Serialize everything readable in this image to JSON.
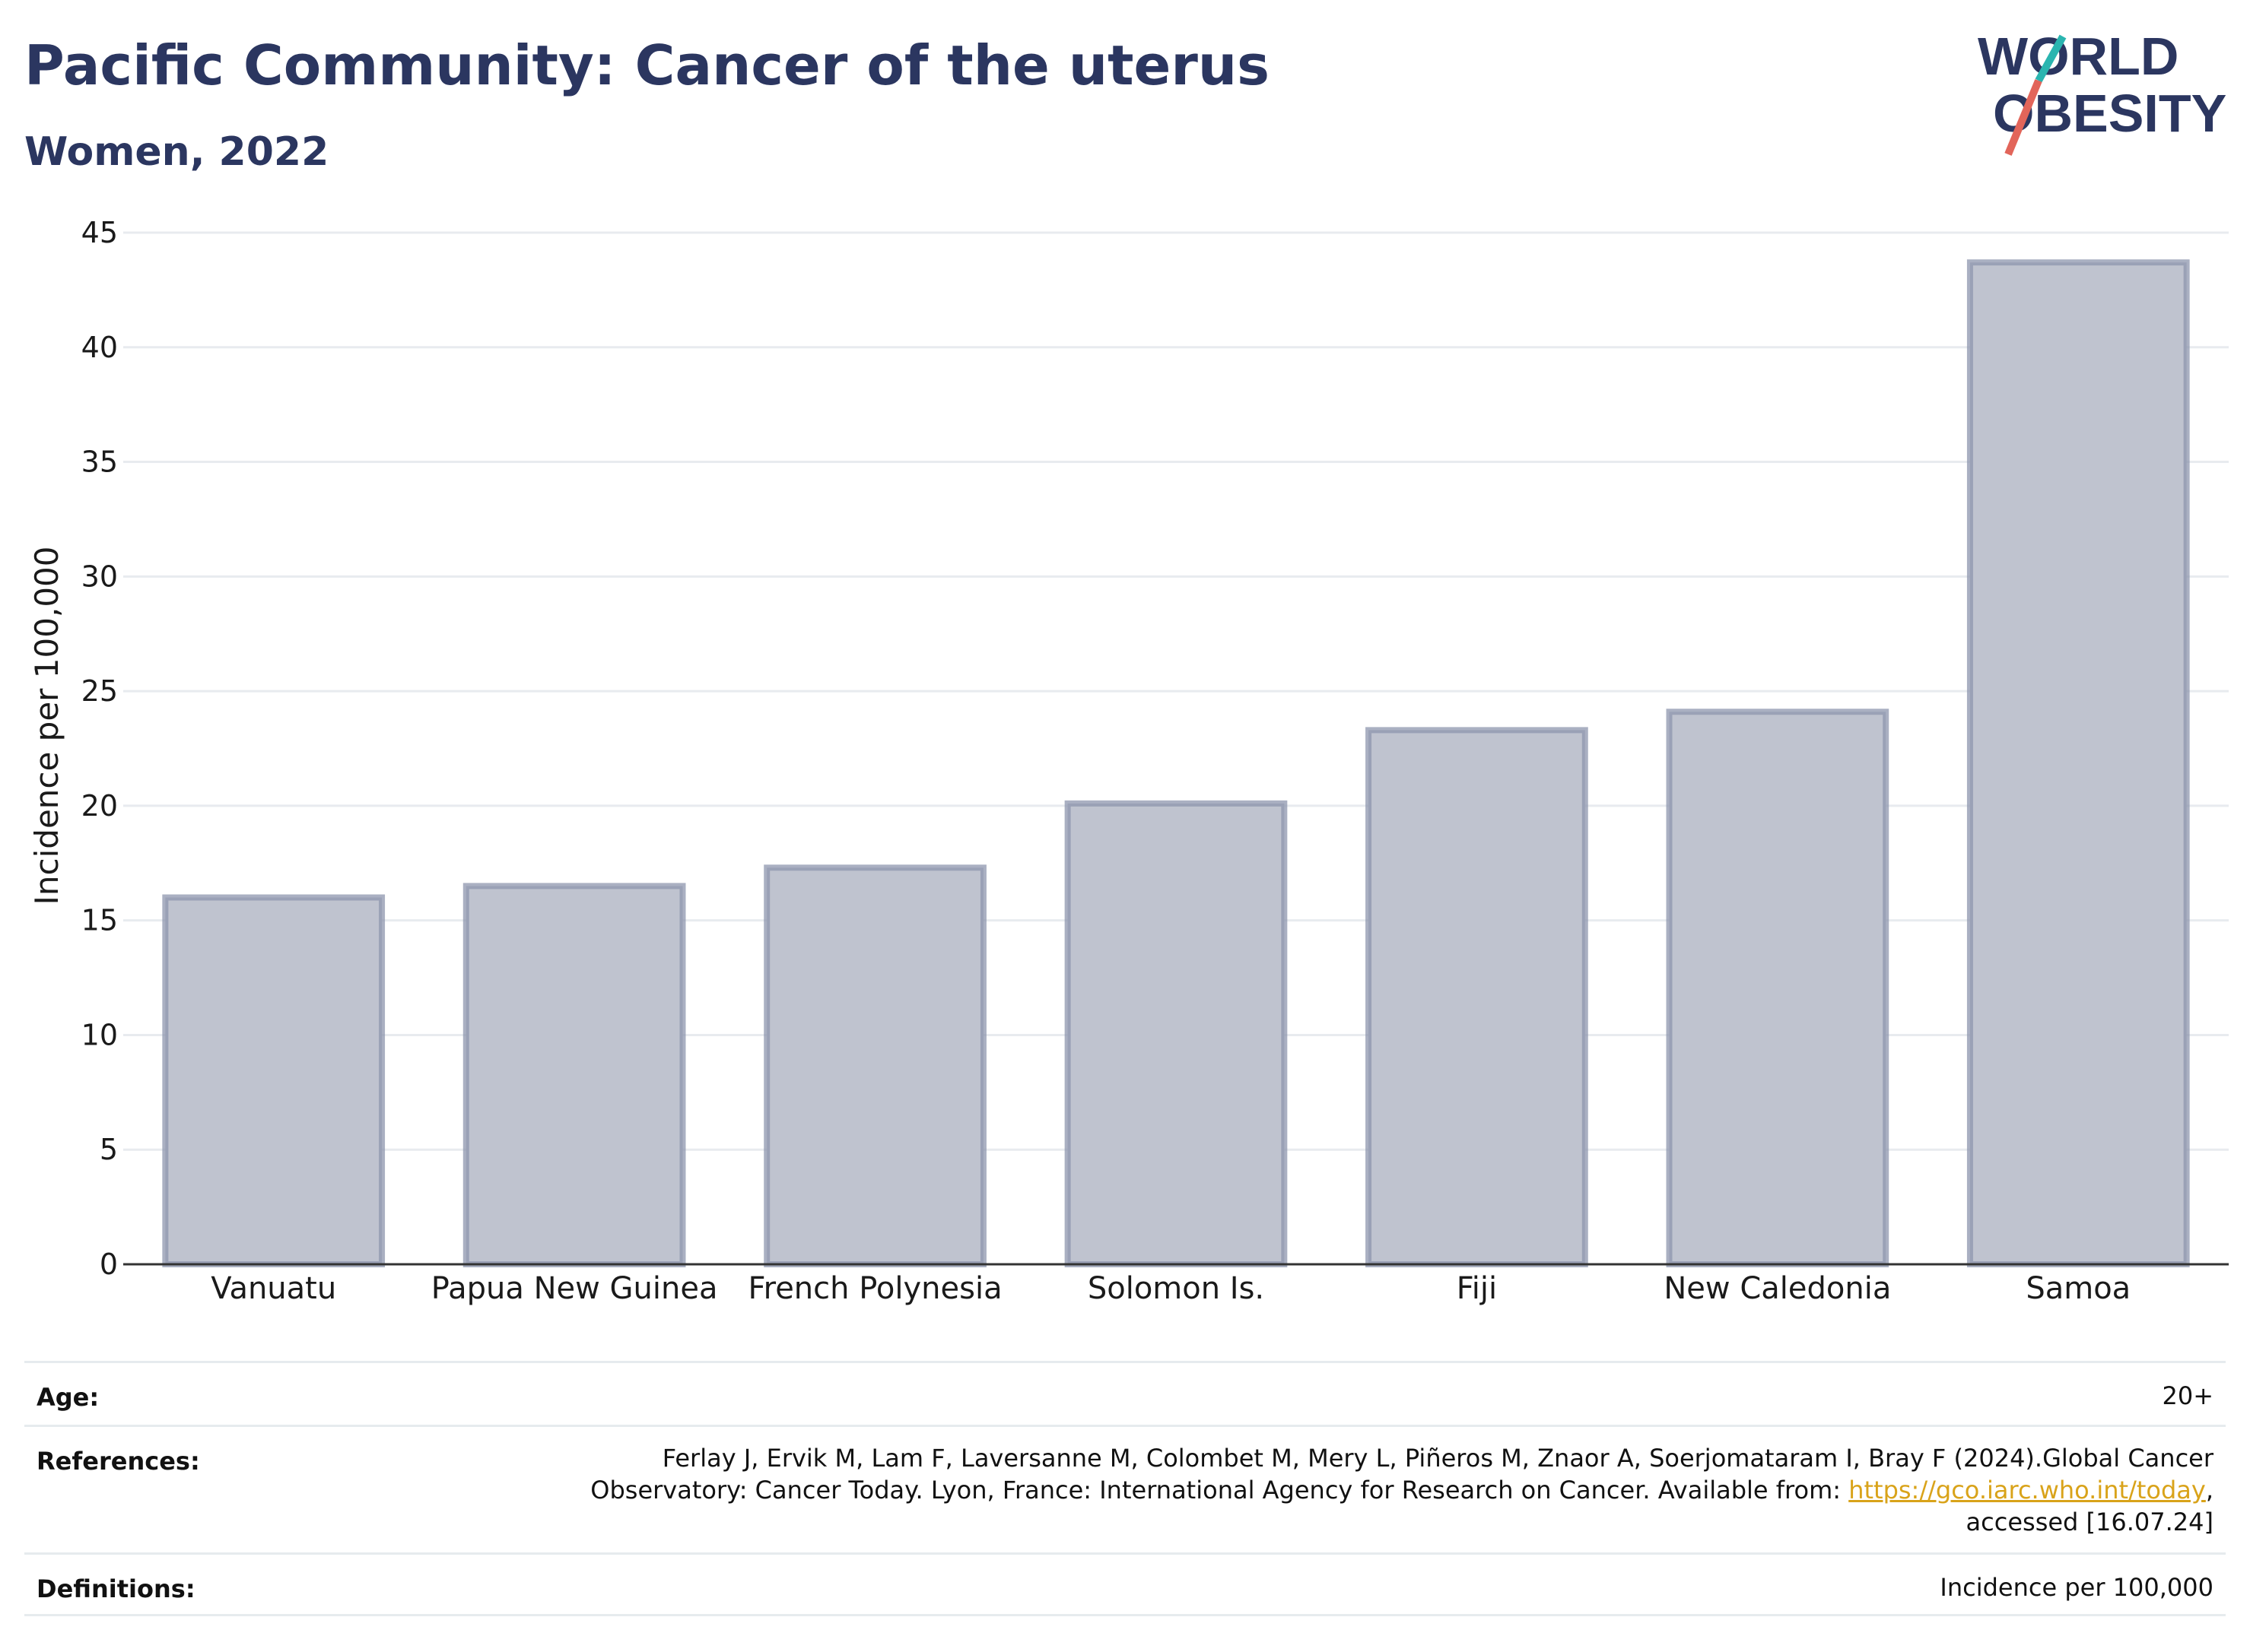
{
  "header": {
    "title": "Pacific Community: Cancer of the uterus",
    "subtitle": "Women, 2022"
  },
  "logo": {
    "line1": "WORLD",
    "line2": "OBESITY",
    "accent_teal": "#2ab5b0",
    "accent_red": "#e2655a",
    "text_color": "#2b3660"
  },
  "chart_data": {
    "type": "bar",
    "categories": [
      "Vanuatu",
      "Papua New Guinea",
      "French Polynesia",
      "Solomon Is.",
      "Fiji",
      "New Caledonia",
      "Samoa"
    ],
    "values": [
      16.0,
      16.5,
      17.3,
      20.1,
      23.3,
      24.1,
      43.7
    ],
    "ylabel": "Incidence per 100,000",
    "ylim": [
      0,
      45
    ],
    "yticks": [
      0,
      5,
      10,
      15,
      20,
      25,
      30,
      35,
      40,
      45
    ],
    "grid": true,
    "bar_fill": "#bfc3cf",
    "bar_stroke": "#8e95ad"
  },
  "footer": {
    "age_label": "Age:",
    "age_value": "20+",
    "references_label": "References:",
    "references_line1": "Ferlay J, Ervik M, Lam F, Laversanne M, Colombet M, Mery L, Piñeros M, Znaor A, Soerjomataram I, Bray F (2024).Global Cancer",
    "references_line2_prefix": "Observatory: Cancer Today. Lyon, France: International Agency for Research on Cancer. Available from: ",
    "references_link": "https://gco.iarc.who.int/today",
    "references_line2_suffix": ",",
    "references_line3": "accessed [16.07.24]",
    "definitions_label": "Definitions:",
    "definitions_value": "Incidence per 100,000"
  }
}
